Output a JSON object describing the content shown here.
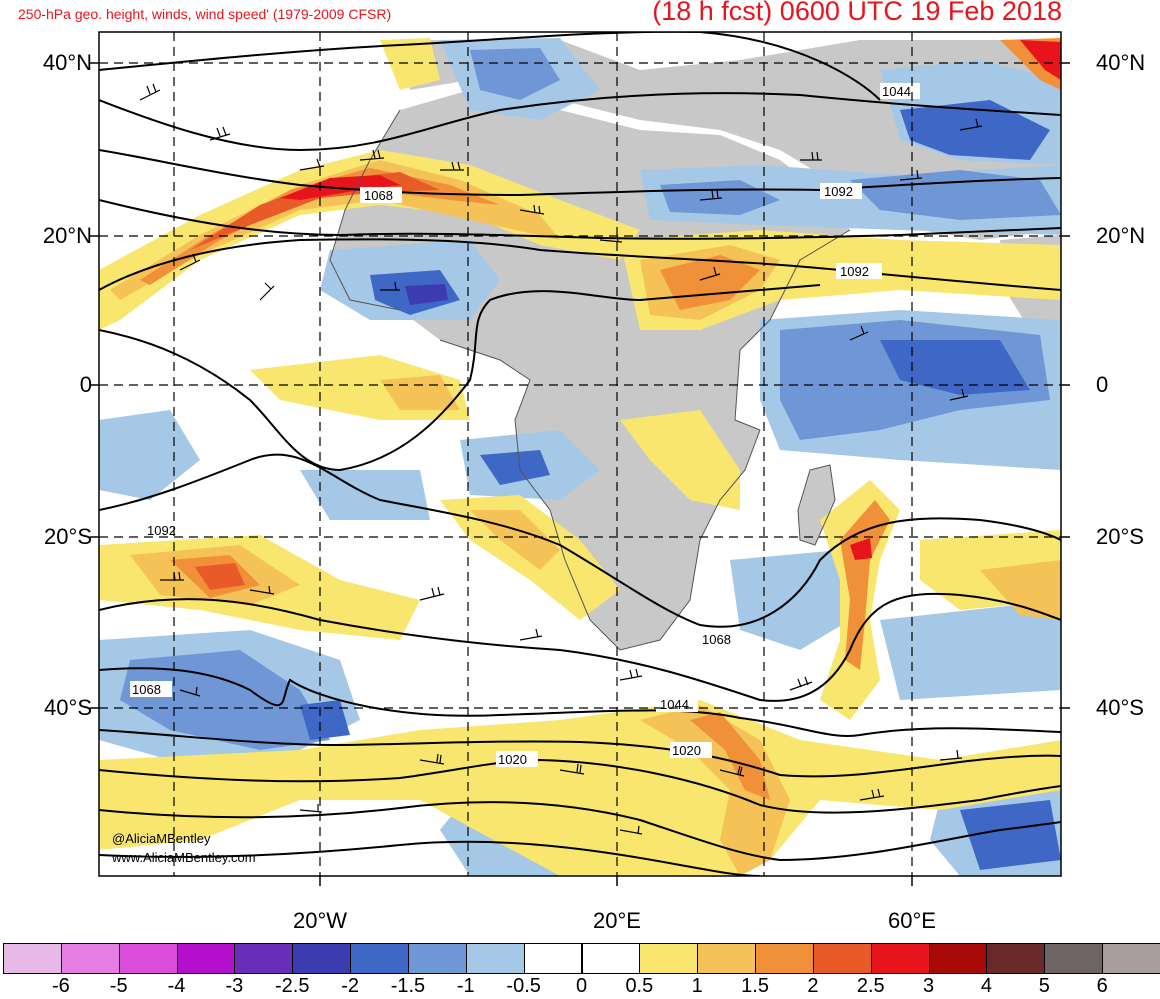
{
  "header": {
    "title_left": "250-hPa geo. height, winds, wind speed' (1979-2009 CFSR)",
    "title_right": "(18 h fcst) 0600 UTC 19 Feb 2018"
  },
  "axes": {
    "lat_labels": [
      "40°N",
      "20°N",
      "0",
      "20°S",
      "40°S"
    ],
    "lon_labels": [
      "20°W",
      "20°E",
      "60°E"
    ]
  },
  "contour_labels": [
    "1044",
    "1068",
    "1092",
    "1092",
    "1092",
    "1068",
    "1068",
    "1044",
    "1020",
    "1020"
  ],
  "credits": {
    "twitter": "@AliciaMBentley",
    "website": "www.AliciaMBentley.com"
  },
  "colorbar": {
    "labels": [
      "-6",
      "-5",
      "-4",
      "-3",
      "-2.5",
      "-2",
      "-1.5",
      "-1",
      "-0.5",
      "0",
      "0.5",
      "1",
      "1.5",
      "2",
      "2.5",
      "3",
      "4",
      "5",
      "6"
    ],
    "colors": [
      "#e6b9e6",
      "#e67ee6",
      "#db4ddb",
      "#b40fcd",
      "#6a2fb8",
      "#3c3cb0",
      "#3f67c6",
      "#6f97d6",
      "#a5c8e6",
      "#ffffff",
      "#ffffff",
      "#f9e66e",
      "#f5c258",
      "#f09038",
      "#e85a28",
      "#e8141c",
      "#a80a0a",
      "#6a2a2a",
      "#6e6464",
      "#a89e9e"
    ]
  },
  "colors": {
    "title": "#e8141c",
    "land": "#c8c8c8",
    "contour": "#000000"
  }
}
